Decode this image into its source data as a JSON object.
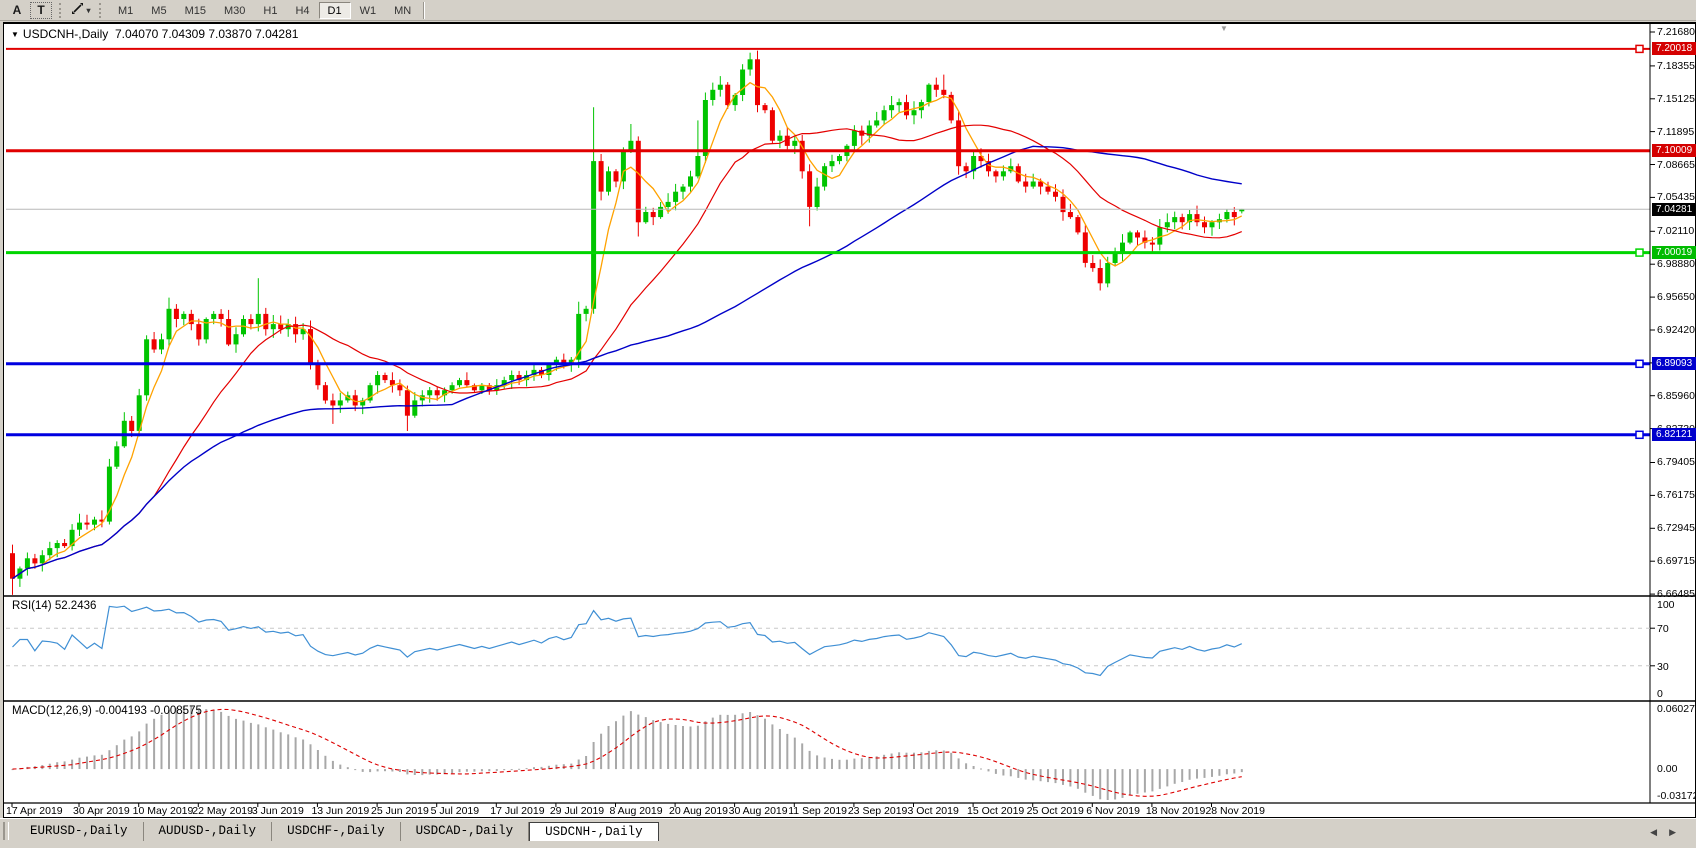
{
  "toolbar": {
    "text_tool": "A",
    "label_tool": "T",
    "caret": "▾",
    "timeframes": [
      "M1",
      "M5",
      "M15",
      "M30",
      "H1",
      "H4",
      "D1",
      "W1",
      "MN"
    ],
    "active_timeframe": "D1"
  },
  "icons": {
    "symbol_dropdown": "▼",
    "shift_marker": "▼",
    "scroll_left": "◀",
    "scroll_right": "▶"
  },
  "chart": {
    "title": {
      "symbol": "USDCNH-,Daily",
      "ohlc": "7.04070 7.04309 7.03870 7.04281"
    },
    "price_axis_ticks": [
      "7.21680",
      "7.18355",
      "7.15125",
      "7.11895",
      "7.08665",
      "7.05435",
      "7.02110",
      "6.98880",
      "6.95650",
      "6.92420",
      "6.89190",
      "6.85960",
      "6.82730",
      "6.79405",
      "6.76175",
      "6.72945",
      "6.69715",
      "6.66485"
    ],
    "levels": [
      {
        "price": 7.20018,
        "label": "7.20018",
        "line": "#e00000",
        "tag": "#d40000",
        "thickness": 2,
        "handle": true
      },
      {
        "price": 7.10009,
        "label": "7.10009",
        "line": "#e00000",
        "tag": "#d40000",
        "thickness": 3,
        "handle": false
      },
      {
        "price": 7.04281,
        "label": "7.04281",
        "line": "#b8b8b8",
        "tag": "#000000",
        "thickness": 1,
        "handle": false
      },
      {
        "price": 7.00019,
        "label": "7.00019",
        "line": "#00d500",
        "tag": "#00bb00",
        "thickness": 3,
        "handle": true
      },
      {
        "price": 6.89093,
        "label": "6.89093",
        "line": "#0000e0",
        "tag": "#0000cc",
        "thickness": 3,
        "handle": true
      },
      {
        "price": 6.82121,
        "label": "6.82121",
        "line": "#0000e0",
        "tag": "#0000cc",
        "thickness": 3,
        "handle": true
      }
    ],
    "dates": [
      "17 Apr 2019",
      "30 Apr 2019",
      "10 May 2019",
      "22 May 2019",
      "3 Jun 2019",
      "13 Jun 2019",
      "25 Jun 2019",
      "5 Jul 2019",
      "17 Jul 2019",
      "29 Jul 2019",
      "8 Aug 2019",
      "20 Aug 2019",
      "30 Aug 2019",
      "11 Sep 2019",
      "23 Sep 2019",
      "3 Oct 2019",
      "15 Oct 2019",
      "25 Oct 2019",
      "6 Nov 2019",
      "18 Nov 2019",
      "28 Nov 2019"
    ],
    "date_indices": [
      0,
      9,
      17,
      25,
      33,
      41,
      49,
      57,
      65,
      73,
      81,
      89,
      97,
      105,
      113,
      121,
      129,
      137,
      145,
      153,
      161
    ],
    "series": {
      "type": "candlestick",
      "closes": [
        6.68,
        6.69,
        6.7,
        6.695,
        6.703,
        6.71,
        6.715,
        6.712,
        6.728,
        6.735,
        6.733,
        6.738,
        6.736,
        6.79,
        6.81,
        6.835,
        6.825,
        6.86,
        6.915,
        6.905,
        6.915,
        6.945,
        6.935,
        6.94,
        6.93,
        6.915,
        6.935,
        6.94,
        6.935,
        6.91,
        6.92,
        6.935,
        6.93,
        6.94,
        6.925,
        6.93,
        6.925,
        6.93,
        6.92,
        6.925,
        6.89,
        6.87,
        6.855,
        6.85,
        6.855,
        6.86,
        6.85,
        6.855,
        6.87,
        6.88,
        6.875,
        6.87,
        6.865,
        6.84,
        6.855,
        6.86,
        6.865,
        6.86,
        6.865,
        6.87,
        6.875,
        6.87,
        6.865,
        6.87,
        6.865,
        6.87,
        6.875,
        6.88,
        6.875,
        6.88,
        6.885,
        6.88,
        6.89,
        6.895,
        6.89,
        6.895,
        6.94,
        6.945,
        7.09,
        7.06,
        7.08,
        7.07,
        7.1,
        7.11,
        7.03,
        7.04,
        7.035,
        7.045,
        7.05,
        7.06,
        7.065,
        7.075,
        7.095,
        7.15,
        7.16,
        7.165,
        7.145,
        7.155,
        7.18,
        7.19,
        7.145,
        7.14,
        7.11,
        7.115,
        7.105,
        7.11,
        7.08,
        7.045,
        7.065,
        7.085,
        7.09,
        7.095,
        7.105,
        7.12,
        7.115,
        7.125,
        7.13,
        7.14,
        7.145,
        7.148,
        7.135,
        7.14,
        7.148,
        7.165,
        7.16,
        7.155,
        7.13,
        7.085,
        7.08,
        7.095,
        7.09,
        7.08,
        7.075,
        7.08,
        7.085,
        7.07,
        7.065,
        7.07,
        7.065,
        7.06,
        7.055,
        7.04,
        7.035,
        7.02,
        6.99,
        6.985,
        6.97,
        6.99,
        7.0,
        7.01,
        7.02,
        7.015,
        7.01,
        7.008,
        7.025,
        7.03,
        7.035,
        7.03,
        7.038,
        7.03,
        7.025,
        7.03,
        7.033,
        7.04,
        7.035,
        7.04281
      ],
      "open_overrides": {
        "0": 6.705,
        "165": 7.0407
      },
      "high_overrides": {
        "21": 6.956,
        "33": 6.975,
        "76": 6.952,
        "78": 7.143,
        "83": 7.1265,
        "92": 7.13,
        "99": 7.1965,
        "125": 7.175,
        "165": 7.04309
      },
      "low_overrides": {
        "0": 6.664,
        "43": 6.832,
        "53": 6.825,
        "84": 7.016,
        "107": 7.026,
        "146": 6.963,
        "165": 7.0387
      }
    },
    "ma_periods": {
      "fast": 5,
      "mid": 20,
      "slow": 60
    },
    "colors": {
      "up": "#00c400",
      "down": "#ee0000",
      "ma_fast": "#ffa200",
      "ma_mid": "#e40000",
      "ma_slow": "#0000c8",
      "rsi_line": "#3f8fd4",
      "rsi_dash": "#c8c8c8",
      "macd_bar": "#a8a8a8",
      "macd_signal": "#dd0000"
    },
    "rsi": {
      "label": "RSI(14) 52.2436",
      "period": 14,
      "axis_labels": [
        "100",
        "70",
        "30",
        "0"
      ],
      "dashed_levels": [
        70,
        30
      ]
    },
    "macd": {
      "label": "MACD(12,26,9) -0.004193 -0.008575",
      "axis_labels": [
        "0.060273",
        "0.00",
        "-0.03172"
      ]
    }
  },
  "tabs": {
    "items": [
      {
        "label": "EURUSD-,Daily",
        "active": false
      },
      {
        "label": "AUDUSD-,Daily",
        "active": false
      },
      {
        "label": "USDCHF-,Daily",
        "active": false
      },
      {
        "label": "USDCAD-,Daily",
        "active": false
      },
      {
        "label": "USDCNH-,Daily",
        "active": true
      }
    ]
  }
}
